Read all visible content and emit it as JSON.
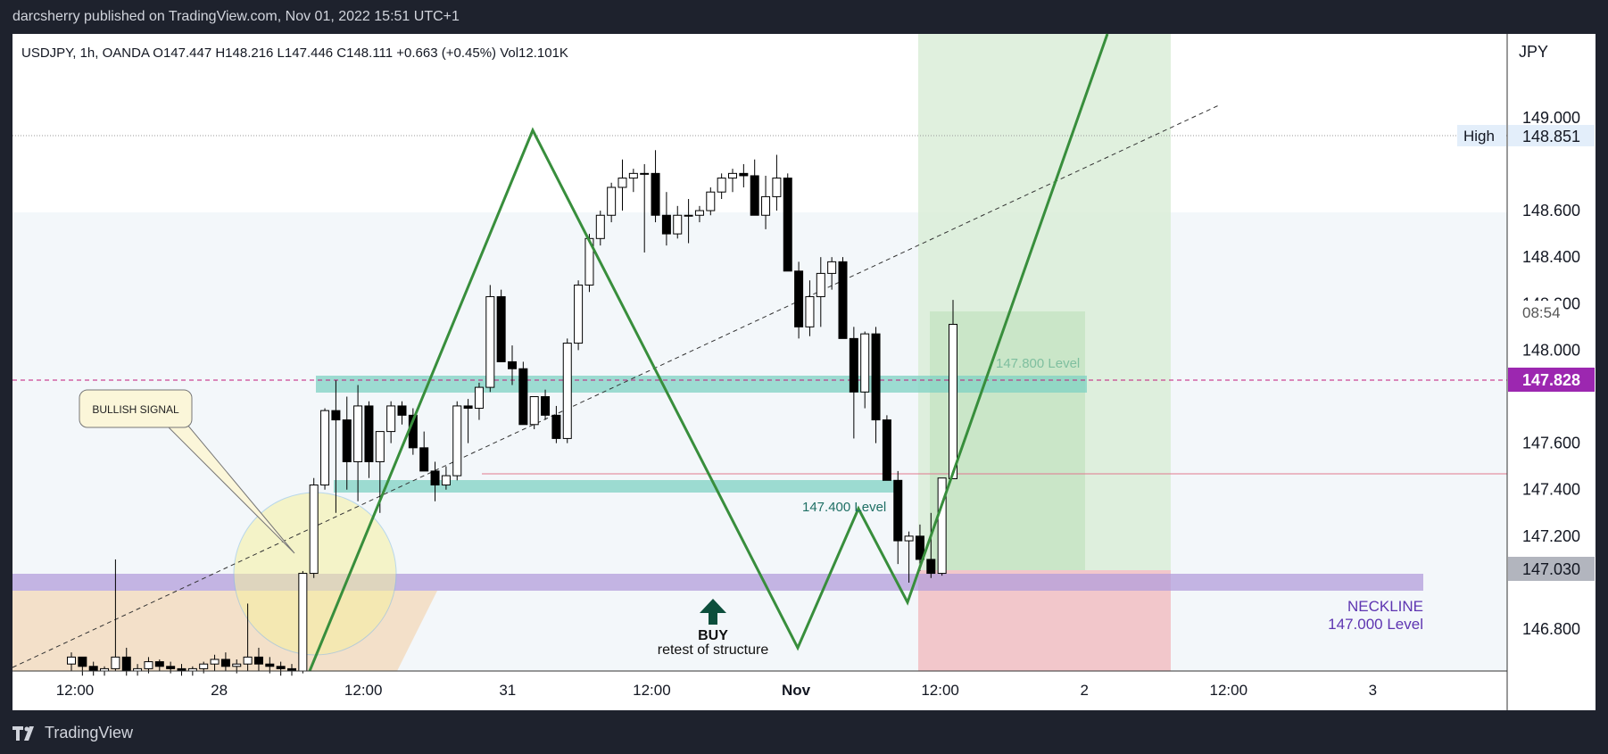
{
  "header": {
    "published_by": "darcsherry published on TradingView.com, Nov 01, 2022 15:51 UTC+1"
  },
  "legend": {
    "text": "USDJPY, 1h, OANDA  O147.447  H148.216  L147.446  C148.111  +0.663 (+0.45%)  Vol12.101K"
  },
  "footer": {
    "logo_text": "TradingView",
    "logo_icon": "tradingview-logo-icon"
  },
  "colors": {
    "bull": "#ffffff",
    "bear": "#000000",
    "zigzag": "#388e3c",
    "level_zone": "#7fd1c3",
    "neckline_zone": "#b39ddb",
    "target_zone": "#c8e6c9",
    "stop_zone": "#f4c2c9",
    "current_price_tag": "#9c27b0"
  },
  "chart_data": {
    "type": "candlestick",
    "symbol": "USDJPY",
    "timeframe": "1h",
    "broker": "OANDA",
    "ohlc_current": {
      "open": 147.447,
      "high": 148.216,
      "low": 147.446,
      "close": 148.111,
      "change": "+0.663 (+0.45%)",
      "volume": "12.101K"
    },
    "currency_label": "JPY",
    "y_axis": {
      "ticks": [
        149.0,
        148.6,
        148.4,
        148.2,
        148.0,
        147.6,
        147.4,
        147.2,
        146.8
      ],
      "ylim": [
        146.62,
        149.36
      ]
    },
    "x_axis": {
      "ticks": [
        "12:00",
        "28",
        "12:00",
        "31",
        "12:00",
        "Nov",
        "12:00",
        "2",
        "12:00",
        "3"
      ]
    },
    "price_tags": {
      "high": {
        "label": "High",
        "value": "148.851"
      },
      "current": {
        "value": "147.828"
      },
      "countdown": "08:54",
      "low_marker": {
        "value": "147.030"
      }
    },
    "annotations": {
      "bullish_signal": "BULLISH SIGNAL",
      "level_147_8": "147.800 Level",
      "level_147_4": "147.400 Level",
      "neckline": "NECKLINE",
      "neckline_level": "147.000 Level",
      "buy": "BUY",
      "buy_sub": "retest of structure"
    },
    "candles": [
      [
        146.65,
        146.7,
        146.62,
        146.68
      ],
      [
        146.68,
        146.67,
        146.6,
        146.64
      ],
      [
        146.64,
        146.66,
        146.6,
        146.62
      ],
      [
        146.62,
        146.64,
        146.6,
        146.63
      ],
      [
        146.63,
        147.1,
        146.62,
        146.68
      ],
      [
        146.68,
        146.72,
        146.6,
        146.62
      ],
      [
        146.62,
        146.65,
        146.6,
        146.63
      ],
      [
        146.63,
        146.68,
        146.61,
        146.66
      ],
      [
        146.66,
        146.67,
        146.62,
        146.64
      ],
      [
        146.64,
        146.66,
        146.61,
        146.63
      ],
      [
        146.63,
        146.65,
        146.6,
        146.62
      ],
      [
        146.62,
        146.64,
        146.6,
        146.63
      ],
      [
        146.63,
        146.66,
        146.61,
        146.65
      ],
      [
        146.65,
        146.69,
        146.62,
        146.67
      ],
      [
        146.67,
        146.7,
        146.62,
        146.64
      ],
      [
        146.64,
        146.67,
        146.61,
        146.65
      ],
      [
        146.65,
        146.91,
        146.62,
        146.68
      ],
      [
        146.68,
        146.72,
        146.62,
        146.65
      ],
      [
        146.65,
        146.68,
        146.61,
        146.64
      ],
      [
        146.64,
        146.66,
        146.6,
        146.63
      ],
      [
        146.63,
        146.65,
        146.6,
        146.62
      ],
      [
        146.62,
        147.05,
        146.61,
        147.04
      ],
      [
        147.04,
        147.45,
        147.02,
        147.42
      ],
      [
        147.42,
        147.75,
        147.4,
        147.74
      ],
      [
        147.74,
        147.87,
        147.3,
        147.7
      ],
      [
        147.7,
        147.8,
        147.4,
        147.52
      ],
      [
        147.52,
        147.85,
        147.35,
        147.76
      ],
      [
        147.76,
        147.78,
        147.45,
        147.52
      ],
      [
        147.52,
        147.65,
        147.3,
        147.65
      ],
      [
        147.65,
        147.78,
        147.6,
        147.76
      ],
      [
        147.76,
        147.78,
        147.68,
        147.72
      ],
      [
        147.72,
        147.75,
        147.55,
        147.58
      ],
      [
        147.58,
        147.65,
        147.48,
        147.48
      ],
      [
        147.48,
        147.52,
        147.35,
        147.42
      ],
      [
        147.42,
        147.5,
        147.4,
        147.46
      ],
      [
        147.46,
        147.78,
        147.44,
        147.76
      ],
      [
        147.76,
        147.79,
        147.6,
        147.75
      ],
      [
        147.75,
        147.86,
        147.7,
        147.84
      ],
      [
        147.84,
        148.28,
        147.82,
        148.23
      ],
      [
        148.23,
        148.26,
        147.95,
        147.95
      ],
      [
        147.95,
        148.02,
        147.85,
        147.92
      ],
      [
        147.92,
        147.95,
        147.68,
        147.68
      ],
      [
        147.68,
        147.8,
        147.66,
        147.8
      ],
      [
        147.8,
        147.83,
        147.7,
        147.72
      ],
      [
        147.72,
        147.76,
        147.6,
        147.62
      ],
      [
        147.62,
        148.05,
        147.6,
        148.03
      ],
      [
        148.03,
        148.3,
        148.0,
        148.28
      ],
      [
        148.28,
        148.5,
        148.25,
        148.48
      ],
      [
        148.48,
        148.6,
        148.45,
        148.58
      ],
      [
        148.58,
        148.72,
        148.55,
        148.7
      ],
      [
        148.7,
        148.82,
        148.6,
        148.74
      ],
      [
        148.74,
        148.78,
        148.68,
        148.76
      ],
      [
        148.76,
        148.8,
        148.42,
        148.76
      ],
      [
        148.76,
        148.86,
        148.55,
        148.58
      ],
      [
        148.58,
        148.68,
        148.45,
        148.5
      ],
      [
        148.5,
        148.62,
        148.48,
        148.58
      ],
      [
        148.58,
        148.65,
        148.46,
        148.58
      ],
      [
        148.58,
        148.62,
        148.55,
        148.6
      ],
      [
        148.6,
        148.7,
        148.58,
        148.68
      ],
      [
        148.68,
        148.76,
        148.65,
        148.74
      ],
      [
        148.74,
        148.78,
        148.68,
        148.76
      ],
      [
        148.76,
        148.8,
        148.7,
        148.75
      ],
      [
        148.75,
        148.82,
        148.58,
        148.58
      ],
      [
        148.58,
        148.75,
        148.52,
        148.66
      ],
      [
        148.66,
        148.84,
        148.6,
        148.74
      ],
      [
        148.74,
        148.76,
        148.34,
        148.34
      ],
      [
        148.34,
        148.38,
        148.05,
        148.1
      ],
      [
        148.1,
        148.3,
        148.06,
        148.23
      ],
      [
        148.23,
        148.4,
        148.1,
        148.33
      ],
      [
        148.33,
        148.4,
        148.26,
        148.38
      ],
      [
        148.38,
        148.4,
        148.06,
        148.05
      ],
      [
        148.05,
        148.1,
        147.62,
        147.82
      ],
      [
        147.82,
        148.08,
        147.75,
        148.07
      ],
      [
        148.07,
        148.1,
        147.6,
        147.7
      ],
      [
        147.7,
        147.72,
        147.44,
        147.44
      ],
      [
        147.44,
        147.48,
        147.08,
        147.18
      ],
      [
        147.18,
        147.22,
        147.0,
        147.2
      ],
      [
        147.2,
        147.25,
        147.05,
        147.1
      ],
      [
        147.1,
        147.3,
        147.02,
        147.04
      ],
      [
        147.04,
        147.45,
        147.03,
        147.45
      ],
      [
        147.447,
        148.216,
        147.446,
        148.111
      ]
    ]
  }
}
